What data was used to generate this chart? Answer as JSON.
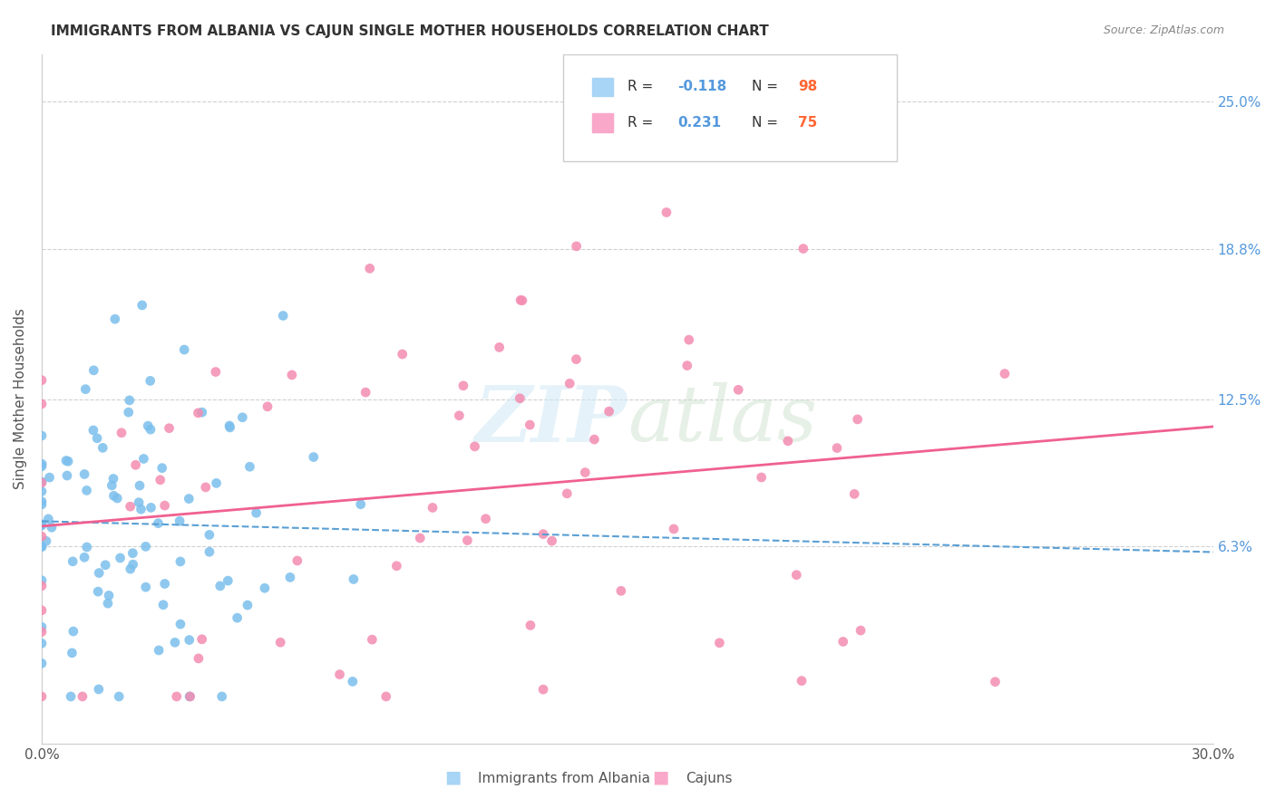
{
  "title": "IMMIGRANTS FROM ALBANIA VS CAJUN SINGLE MOTHER HOUSEHOLDS CORRELATION CHART",
  "source": "Source: ZipAtlas.com",
  "ylabel": "Single Mother Households",
  "ytick_labels": [
    "25.0%",
    "18.8%",
    "12.5%",
    "6.3%"
  ],
  "ytick_values": [
    0.25,
    0.188,
    0.125,
    0.063
  ],
  "xmin": 0.0,
  "xmax": 0.3,
  "ymin": -0.02,
  "ymax": 0.27,
  "albania_color": "#7bbfed",
  "cajun_color": "#f48cb1",
  "albania_line_color": "#5a9fd4",
  "cajun_line_color": "#f06090",
  "albania_patch_color": "#a8d4f5",
  "cajun_patch_color": "#f9a8c9",
  "albania_R": -0.118,
  "cajun_R": 0.231,
  "albania_N": 98,
  "cajun_N": 75,
  "background_color": "#ffffff",
  "grid_color": "#d0d0d0",
  "r_text_color": "#5599dd",
  "n_text_color": "#ff6633",
  "label_color": "#555555",
  "title_color": "#333333",
  "source_color": "#888888"
}
